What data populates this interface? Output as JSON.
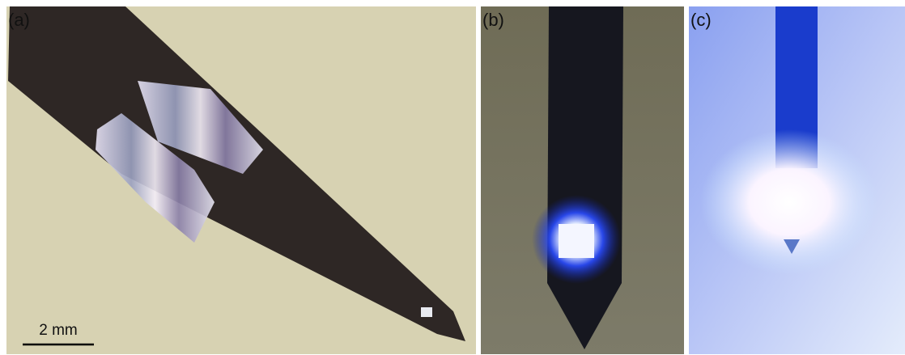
{
  "panels": [
    {
      "label": "(a)"
    },
    {
      "label": "(b)"
    },
    {
      "label": "(c)"
    }
  ],
  "scale_bar": {
    "label": "2 mm"
  }
}
